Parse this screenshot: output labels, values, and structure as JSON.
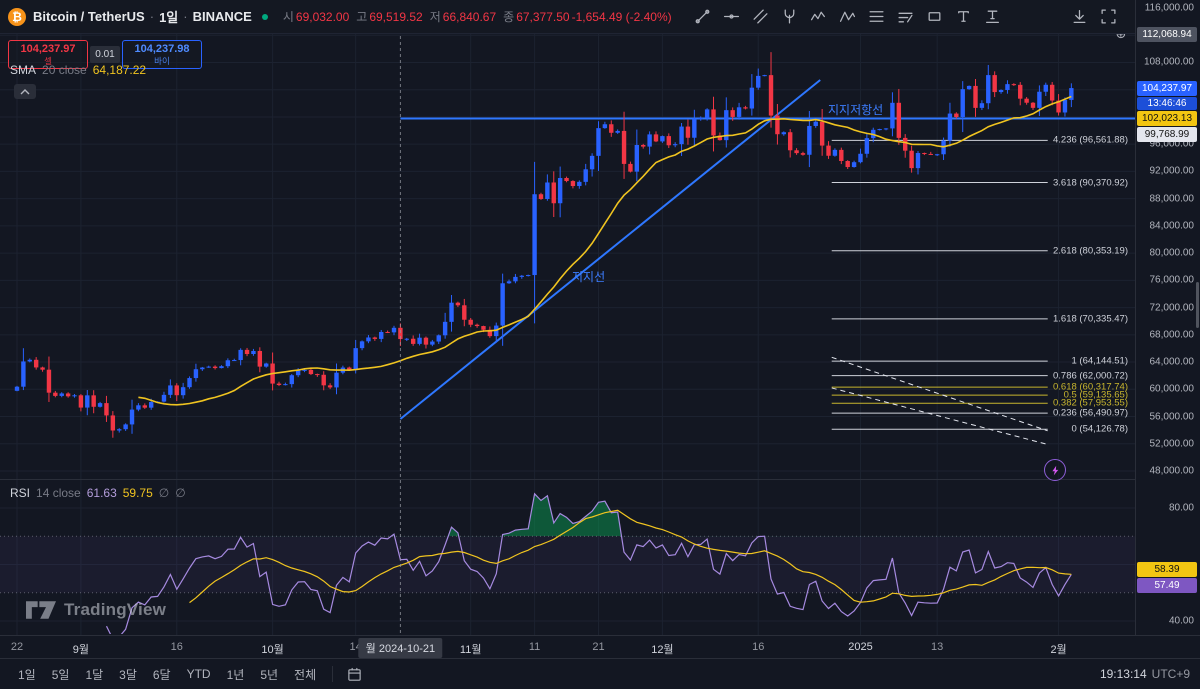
{
  "colors": {
    "up": "#2962ff",
    "down": "#f23645",
    "sma": "#f0c420",
    "rsi": "#a68ae0",
    "rsi_ma": "#f0c420",
    "trend": "#2e77ff",
    "accent": "#2962ff",
    "background": "#131722",
    "text": "#d1d4dc",
    "muted": "#787b86",
    "overbought_fill": "#0a9950"
  },
  "header": {
    "symbol": "Bitcoin / TetherUS",
    "separator": "·",
    "interval": "1일",
    "exchange": "BINANCE",
    "ohlc": {
      "open_label": "시",
      "open": "69,032.00",
      "high_label": "고",
      "high": "69,519.52",
      "low_label": "저",
      "low": "66,840.67",
      "close_label": "종",
      "close": "67,377.50",
      "change": "-1,654.49 (-2.40%)"
    },
    "drawing_tools": [
      "trend-line",
      "horizontal-line",
      "parallel-channel",
      "pitchfork",
      "elliott-wave",
      "zigzag",
      "fib-retracement",
      "fib-channel",
      "rectangle",
      "text",
      "anchored-text"
    ],
    "corner_icons": [
      "download",
      "fullscreen"
    ]
  },
  "trade_panel": {
    "sell_price": "104,237.97",
    "sell_label": "셀",
    "spread": "0.01",
    "buy_price": "104,237.98",
    "buy_label": "바이"
  },
  "sma_legend": {
    "name": "SMA",
    "params": "20 close",
    "value": "64,187.22"
  },
  "rsi_legend": {
    "name": "RSI",
    "params": "14 close",
    "value1": "61.63",
    "value2": "59.75",
    "hidden1": "∅",
    "hidden2": "∅"
  },
  "price_axis_tags": [
    {
      "name": "high-marker",
      "label": "112,068.94",
      "price": 112068.94,
      "bg": "#4e5360",
      "fg": "#ffffff",
      "icon": "plus"
    },
    {
      "name": "last-price",
      "label": "104,237.97",
      "price": 104237.97,
      "bg": "#2962ff",
      "fg": "#ffffff"
    },
    {
      "name": "countdown",
      "label": "13:46:46",
      "bg": "#1c4fd8",
      "fg": "#ffffff"
    },
    {
      "name": "sma-value",
      "label": "102,023.13",
      "price": 102023.13,
      "bg": "#f2c512",
      "fg": "#111111"
    },
    {
      "name": "line-value",
      "label": "99,768.99",
      "price": 99768.99,
      "bg": "#e4e6ee",
      "fg": "#111111"
    }
  ],
  "rsi_tags": [
    {
      "name": "rsi-ma-value",
      "label": "58.39",
      "value": 58.39,
      "bg": "#f2c512",
      "fg": "#111111"
    },
    {
      "name": "rsi-value",
      "label": "57.49",
      "value": 57.49,
      "bg": "#7e57c2",
      "fg": "#ffffff"
    }
  ],
  "drawings": {
    "support_line": {
      "label": "지지선",
      "from": {
        "index": 60,
        "price": 55636
      },
      "to": {
        "index": 125.7,
        "price": 105425
      }
    },
    "resistance_line": {
      "label": "지지저항선",
      "price": 99768.99,
      "from_index": 60
    },
    "fibonacci": {
      "from_index": 127.5,
      "to_index": 161.3,
      "levels": [
        {
          "level": "4.236",
          "value": 96561.88,
          "color": "#cfd2da"
        },
        {
          "level": "3.618",
          "value": 90370.92,
          "color": "#cfd2da"
        },
        {
          "level": "2.618",
          "value": 80353.19,
          "color": "#cfd2da"
        },
        {
          "level": "1.618",
          "value": 70335.47,
          "color": "#cfd2da"
        },
        {
          "level": "1",
          "value": 64144.51,
          "color": "#cfd2da"
        },
        {
          "level": "0.786",
          "value": 62000.72,
          "color": "#cfd2da"
        },
        {
          "level": "0.618",
          "value": 60317.74,
          "color": "#c8b62e"
        },
        {
          "level": "0.5",
          "value": 59135.65,
          "color": "#c8b62e"
        },
        {
          "level": "0.382",
          "value": 57953.55,
          "color": "#c8b62e"
        },
        {
          "level": "0.236",
          "value": 56490.97,
          "color": "#cfd2da"
        },
        {
          "level": "0",
          "value": 54126.78,
          "color": "#cfd2da"
        }
      ]
    },
    "dashed_lines": [
      {
        "from": {
          "index": 127.5,
          "price": 64700
        },
        "to": {
          "index": 161.3,
          "price": 53900
        }
      },
      {
        "from": {
          "index": 127.5,
          "price": 60200
        },
        "to": {
          "index": 161.3,
          "price": 51900
        }
      }
    ]
  },
  "time_axis": {
    "labels": [
      {
        "text": "22",
        "index": 0
      },
      {
        "text": "9월",
        "index": 10,
        "major": true
      },
      {
        "text": "16",
        "index": 25
      },
      {
        "text": "10월",
        "index": 40,
        "major": true
      },
      {
        "text": "14",
        "index": 53
      },
      {
        "text": "11월",
        "index": 71,
        "major": true
      },
      {
        "text": "11",
        "index": 81
      },
      {
        "text": "21",
        "index": 91
      },
      {
        "text": "12월",
        "index": 101,
        "major": true
      },
      {
        "text": "16",
        "index": 116
      },
      {
        "text": "2025",
        "index": 132,
        "major": true
      },
      {
        "text": "13",
        "index": 144
      },
      {
        "text": "2월",
        "index": 163,
        "major": true
      }
    ],
    "crosshair": {
      "text": "월 2024-10-21",
      "index": 60
    }
  },
  "bottom_bar": {
    "ranges": [
      "1일",
      "5일",
      "1달",
      "3달",
      "6달",
      "YTD",
      "1년",
      "5년",
      "전체"
    ],
    "clock": "19:13:14",
    "tz": "UTC+9"
  },
  "watermark": "TradingView",
  "chart_data": {
    "type": "candlestick",
    "title": "Bitcoin / TetherUS · 1일 · BINANCE",
    "price_axis": {
      "min": 48000,
      "max": 116000,
      "step": 4000
    },
    "rsi_axis": {
      "labels": [
        80,
        40
      ],
      "overbought": 70,
      "midline": 50
    },
    "sma_period": 20,
    "rsi_period": 14,
    "crosshair_candle": {
      "date": "2024-10-21",
      "open": 69032.0,
      "high": 69519.52,
      "low": 66840.67,
      "close": 67377.5
    },
    "closes": [
      60381,
      64094,
      64333,
      63210,
      62880,
      59504,
      59027,
      59388,
      58969,
      59119,
      57315,
      59112,
      57431,
      57971,
      56160,
      53948,
      54139,
      54841,
      57019,
      57648,
      57301,
      58127,
      58192,
      59182,
      60571,
      59132,
      60308,
      61651,
      62947,
      63193,
      63330,
      63118,
      63393,
      64262,
      64295,
      65790,
      65181,
      65628,
      63329,
      63788,
      60837,
      60632,
      60759,
      62067,
      62818,
      62851,
      62236,
      62131,
      60582,
      60274,
      62445,
      63193,
      62851,
      66046,
      67041,
      67612,
      67399,
      68418,
      68362,
      69032,
      67377,
      67424,
      66668,
      67578,
      66560,
      67014,
      67929,
      69907,
      72720,
      72339,
      70215,
      69482,
      69289,
      68741,
      67811,
      69359,
      75571,
      75857,
      76509,
      76677,
      76778,
      88648,
      87952,
      90375,
      87325,
      91032,
      90586,
      89855,
      90466,
      92310,
      94286,
      98357,
      98927,
      97672,
      97945,
      93102,
      91965,
      95879,
      95643,
      97438,
      96405,
      97185,
      95840,
      96002,
      98587,
      96945,
      99740,
      99831,
      101109,
      97276,
      96593,
      100997,
      100004,
      101417,
      101236,
      104298,
      106029,
      106140,
      100204,
      97461,
      97756,
      95104,
      94686,
      94443,
      98676,
      99299,
      95795,
      94299,
      95163,
      93530,
      92643,
      93354,
      94591,
      96886,
      98107,
      98220,
      98314,
      102078,
      96922,
      95043,
      92484,
      94701,
      94566,
      94488,
      94516,
      96534,
      100497,
      99987,
      104077,
      104556,
      101331,
      102016,
      106146,
      103653,
      103960,
      104819,
      104714,
      102682,
      102087,
      101335,
      103703,
      104722,
      102405,
      100655,
      102500,
      104238
    ]
  }
}
